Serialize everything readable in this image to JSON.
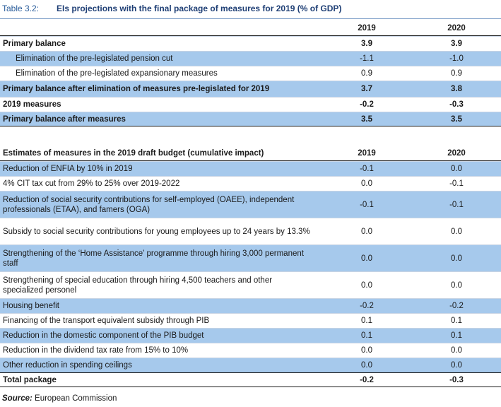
{
  "caption": {
    "label": "Table 3.2:",
    "title": "EIs projections with the final package of measures for 2019 (% of GDP)"
  },
  "section1": {
    "header": {
      "label": "",
      "col1": "2019",
      "col2": "2020"
    },
    "rows": [
      {
        "label": "Primary balance",
        "v1": "3.9",
        "v2": "3.9"
      },
      {
        "label": "Elimination of the pre-legislated pension cut",
        "v1": "-1.1",
        "v2": "-1.0"
      },
      {
        "label": "Elimination of the pre-legislated expansionary measures",
        "v1": "0.9",
        "v2": "0.9"
      },
      {
        "label": "Primary balance after elimination of measures pre-legislated for 2019",
        "v1": "3.7",
        "v2": "3.8"
      },
      {
        "label": "2019 measures",
        "v1": "-0.2",
        "v2": "-0.3"
      },
      {
        "label": "Primary balance after measures",
        "v1": "3.5",
        "v2": "3.5"
      }
    ]
  },
  "section2": {
    "header": {
      "label": "Estimates of measures in the 2019 draft budget (cumulative impact)",
      "col1": "2019",
      "col2": "2020"
    },
    "rows": [
      {
        "label": "Reduction of ENFIA by 10% in 2019",
        "v1": "-0.1",
        "v2": "0.0"
      },
      {
        "label": "4% CIT tax cut from 29% to 25% over 2019-2022",
        "v1": "0.0",
        "v2": "-0.1"
      },
      {
        "label": "Reduction of social security contributions for self-employed (OAEE), independent professionals (ETAA), and famers (OGA)",
        "v1": "-0.1",
        "v2": "-0.1"
      },
      {
        "label": "Subsidy to social security contributions for young employees up to 24 years by 13.3%",
        "v1": "0.0",
        "v2": "0.0"
      },
      {
        "label": "Strengthening of the ‘Home Assistance’ programme through hiring 3,000 permanent staff",
        "v1": "0.0",
        "v2": "0.0"
      },
      {
        "label": "Strengthening of special education through hiring 4,500 teachers and other specialized personel",
        "v1": "0.0",
        "v2": "0.0"
      },
      {
        "label": "Housing benefit",
        "v1": "-0.2",
        "v2": "-0.2"
      },
      {
        "label": "Financing of the transport equivalent subsidy through PIB",
        "v1": "0.1",
        "v2": "0.1"
      },
      {
        "label": "Reduction in the domestic component of the PIB budget",
        "v1": "0.1",
        "v2": "0.1"
      },
      {
        "label": "Reduction in the dividend tax rate from 15% to 10%",
        "v1": "0.0",
        "v2": "0.0"
      },
      {
        "label": "Other reduction in spending ceilings",
        "v1": "0.0",
        "v2": "0.0"
      },
      {
        "label": "Total package",
        "v1": "-0.2",
        "v2": "-0.3"
      }
    ]
  },
  "source": {
    "prefix": "Source:",
    "text": " European Commission"
  }
}
